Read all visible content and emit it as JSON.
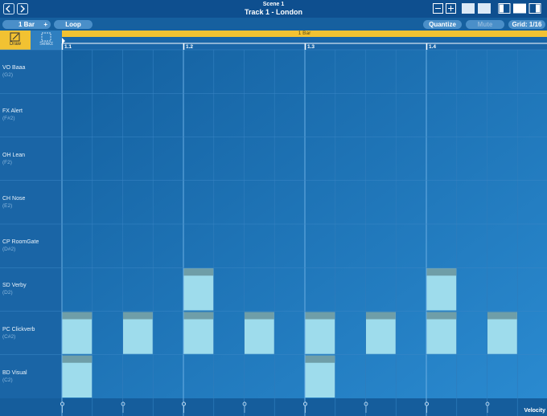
{
  "header": {
    "subtitle": "Scene 1",
    "title": "Track 1 - London"
  },
  "toolbar": {
    "length": "1 Bar",
    "add": "+",
    "loop": "Loop",
    "quantize": "Quantize",
    "mute": "Mute",
    "grid": "Grid: 1/16"
  },
  "tools": [
    "Draw",
    "Select"
  ],
  "loop_region": "1 Bar",
  "ruler": [
    "1.1",
    "1.2",
    "1.3",
    "1.4"
  ],
  "rows": [
    {
      "name": "VO Baaa",
      "note": "(G2)",
      "steps": []
    },
    {
      "name": "FX Alert",
      "note": "(F#2)",
      "steps": []
    },
    {
      "name": "OH Lean",
      "note": "(F2)",
      "steps": []
    },
    {
      "name": "CH Nose",
      "note": "(E2)",
      "steps": []
    },
    {
      "name": "CP RoomGate",
      "note": "(D#2)",
      "steps": []
    },
    {
      "name": "SD Verby",
      "note": "(D2)",
      "steps": [
        4,
        12
      ]
    },
    {
      "name": "PC Clickverb",
      "note": "(C#2)",
      "steps": [
        0,
        2,
        4,
        6,
        8,
        10,
        12,
        14
      ]
    },
    {
      "name": "BD Visual",
      "note": "(C2)",
      "steps": [
        0,
        8
      ]
    }
  ],
  "velocity_label": "Velocity"
}
